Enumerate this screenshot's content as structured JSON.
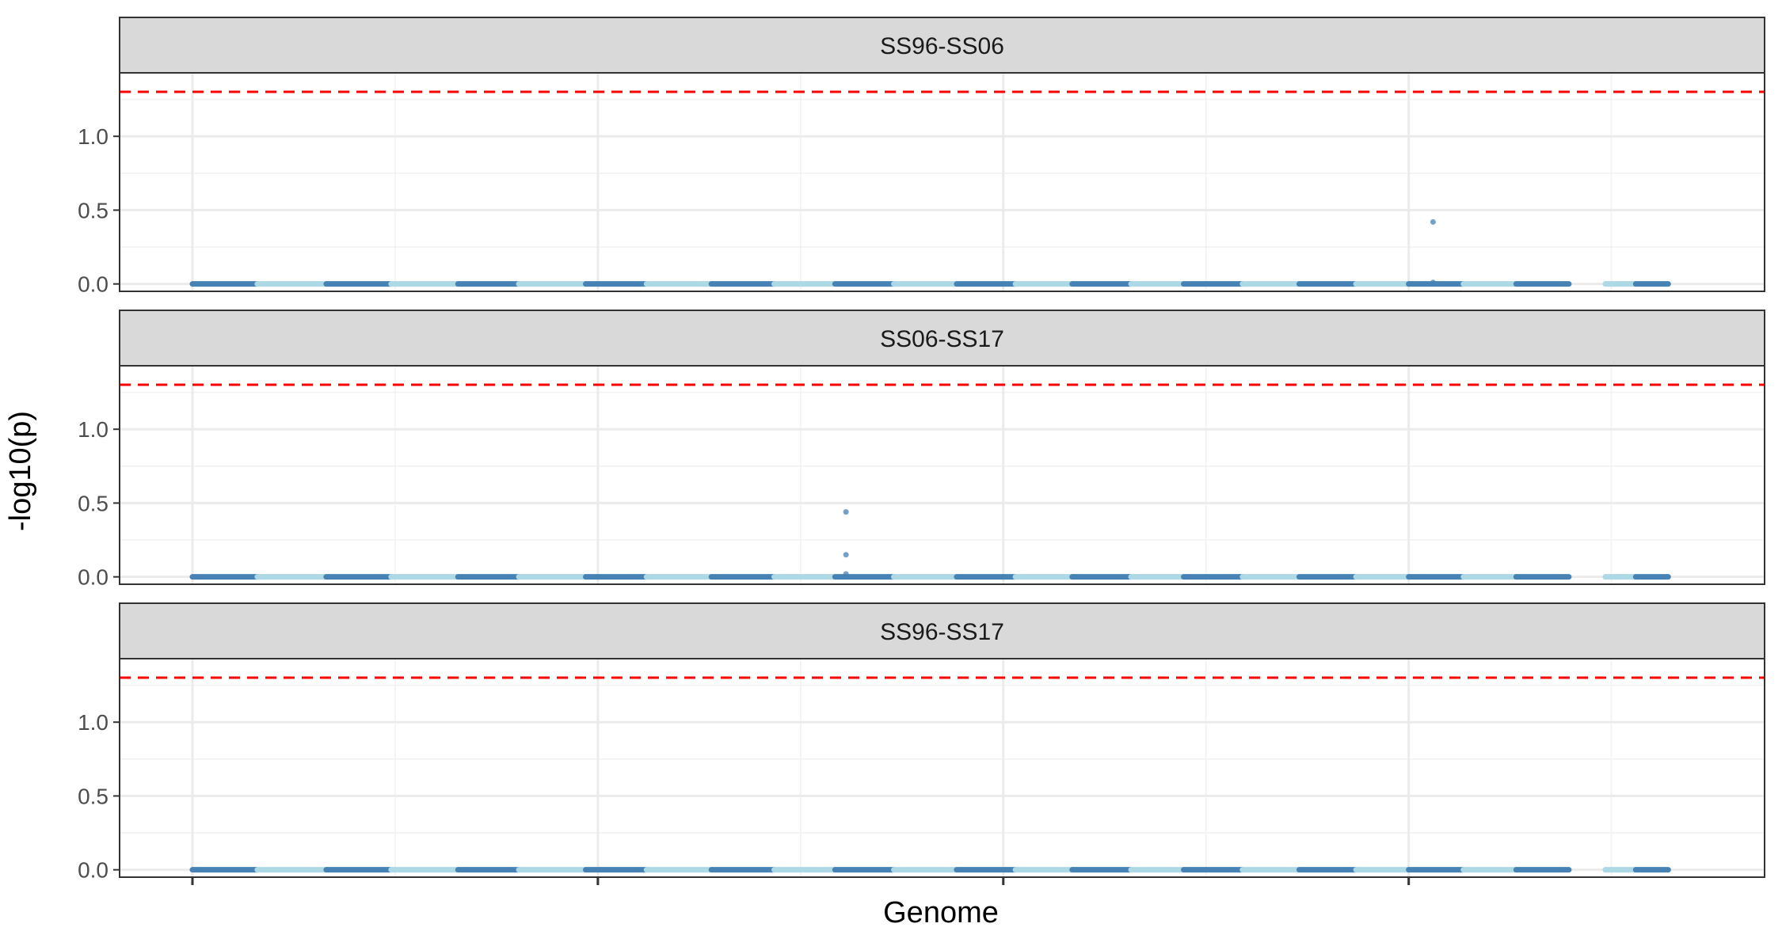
{
  "chart_data": {
    "type": "scatter",
    "xlabel": "Genome",
    "ylabel": "-log10(p)",
    "ylim": [
      -0.05,
      1.43
    ],
    "yticks": [
      0.0,
      0.5,
      1.0
    ],
    "ytick_labels": [
      "0.0",
      "0.5",
      "1.0"
    ],
    "x_range": [
      0,
      3700
    ],
    "x_major_breaks": [
      0,
      1000,
      2000,
      3000
    ],
    "threshold": 1.301,
    "threshold_color": "#ff0000",
    "grid": true,
    "legend": "none",
    "colors": {
      "dark": "#4682b4",
      "light": "#add8e6"
    },
    "segments": [
      {
        "start": 0,
        "end": 160,
        "color": "dark"
      },
      {
        "start": 160,
        "end": 330,
        "color": "light"
      },
      {
        "start": 330,
        "end": 490,
        "color": "dark"
      },
      {
        "start": 490,
        "end": 655,
        "color": "light"
      },
      {
        "start": 655,
        "end": 805,
        "color": "dark"
      },
      {
        "start": 805,
        "end": 970,
        "color": "light"
      },
      {
        "start": 970,
        "end": 1120,
        "color": "dark"
      },
      {
        "start": 1120,
        "end": 1280,
        "color": "light"
      },
      {
        "start": 1280,
        "end": 1435,
        "color": "dark"
      },
      {
        "start": 1435,
        "end": 1585,
        "color": "light"
      },
      {
        "start": 1585,
        "end": 1730,
        "color": "dark"
      },
      {
        "start": 1730,
        "end": 1885,
        "color": "light"
      },
      {
        "start": 1885,
        "end": 2030,
        "color": "dark"
      },
      {
        "start": 2030,
        "end": 2170,
        "color": "light"
      },
      {
        "start": 2170,
        "end": 2315,
        "color": "dark"
      },
      {
        "start": 2315,
        "end": 2445,
        "color": "light"
      },
      {
        "start": 2445,
        "end": 2590,
        "color": "dark"
      },
      {
        "start": 2590,
        "end": 2730,
        "color": "light"
      },
      {
        "start": 2730,
        "end": 2870,
        "color": "dark"
      },
      {
        "start": 2870,
        "end": 3000,
        "color": "light"
      },
      {
        "start": 3000,
        "end": 3135,
        "color": "dark"
      },
      {
        "start": 3135,
        "end": 3265,
        "color": "light"
      },
      {
        "start": 3265,
        "end": 3395,
        "color": "dark"
      },
      {
        "start": 3485,
        "end": 3560,
        "color": "light"
      },
      {
        "start": 3560,
        "end": 3640,
        "color": "dark"
      }
    ],
    "panels": [
      {
        "label": "SS96-SS06",
        "highlights": [
          {
            "x": 3060,
            "y": 0.42
          },
          {
            "x": 3060,
            "y": 0.01
          }
        ]
      },
      {
        "label": "SS06-SS17",
        "highlights": [
          {
            "x": 1612,
            "y": 0.44
          },
          {
            "x": 1612,
            "y": 0.15
          },
          {
            "x": 1612,
            "y": 0.02
          }
        ]
      },
      {
        "label": "SS96-SS17",
        "highlights": []
      }
    ]
  }
}
